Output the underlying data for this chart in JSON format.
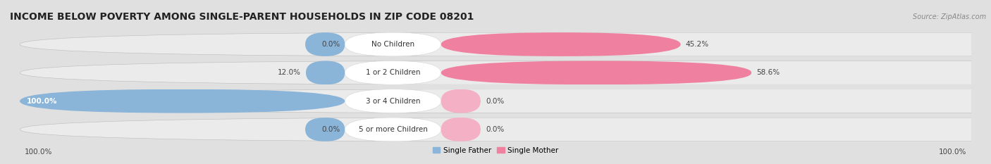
{
  "title": "INCOME BELOW POVERTY AMONG SINGLE-PARENT HOUSEHOLDS IN ZIP CODE 08201",
  "source": "Source: ZipAtlas.com",
  "categories": [
    "No Children",
    "1 or 2 Children",
    "3 or 4 Children",
    "5 or more Children"
  ],
  "single_father": [
    0.0,
    12.0,
    100.0,
    0.0
  ],
  "single_mother": [
    45.2,
    58.6,
    0.0,
    0.0
  ],
  "father_color": "#8ab4d8",
  "mother_color": "#f080a0",
  "mother_color_light": "#f4b0c4",
  "bg_color": "#e0e0e0",
  "row_bg": "#ebebeb",
  "center_label_bg": "#ffffff",
  "max_val": 100.0,
  "title_fontsize": 10,
  "label_fontsize": 7.5,
  "source_fontsize": 7,
  "axis_label_fontsize": 7.5,
  "figsize": [
    14.06,
    2.33
  ],
  "dpi": 100,
  "left_axis_label": "100.0%",
  "right_axis_label": "100.0%",
  "legend_father": "Single Father",
  "legend_mother": "Single Mother"
}
